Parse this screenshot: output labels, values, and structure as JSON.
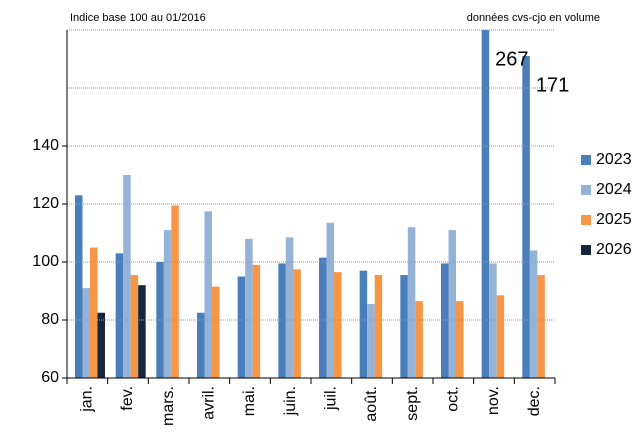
{
  "chart_data": {
    "type": "bar",
    "subtitle_left": "Indice base 100 au 01/2016",
    "subtitle_right": "données cvs-cjo en volume",
    "categories": [
      "jan.",
      "fev.",
      "mars.",
      "avril.",
      "mai.",
      "juin.",
      "juil.",
      "août.",
      "sept.",
      "oct.",
      "nov.",
      "dec."
    ],
    "series": [
      {
        "name": "2023",
        "color": "#4a7ebb",
        "values": [
          123,
          103,
          100,
          82.5,
          95,
          99.5,
          101.5,
          97,
          95.5,
          99.5,
          267,
          171
        ],
        "value_labels": [
          null,
          null,
          null,
          null,
          null,
          null,
          null,
          null,
          null,
          null,
          "267",
          "171"
        ]
      },
      {
        "name": "2024",
        "color": "#95b3d7",
        "values": [
          91,
          130,
          111,
          117.5,
          108,
          108.5,
          113.5,
          85.5,
          112,
          111,
          99.5,
          104
        ]
      },
      {
        "name": "2025",
        "color": "#f79646",
        "values": [
          105,
          95.5,
          119.5,
          91.5,
          99,
          97.5,
          96.5,
          95.5,
          86.5,
          86.5,
          88.5,
          95.5
        ]
      },
      {
        "name": "2026",
        "color": "#17263f",
        "values": [
          82.5,
          92,
          null,
          null,
          null,
          null,
          null,
          null,
          null,
          null,
          null,
          null
        ]
      }
    ],
    "ylim": [
      60,
      180
    ],
    "yticks": [
      60,
      80,
      100,
      120,
      140
    ],
    "ygrid": [
      80,
      100,
      120,
      140,
      160,
      180
    ],
    "grid": true,
    "legend": "right"
  }
}
